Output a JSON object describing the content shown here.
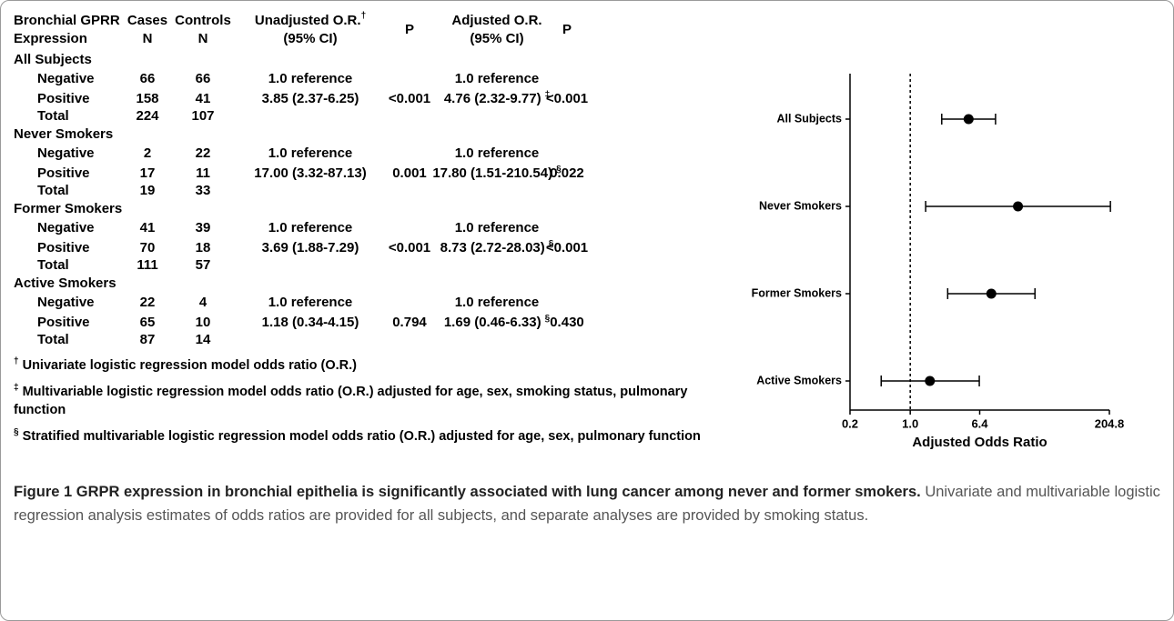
{
  "table": {
    "columns": [
      {
        "lines": [
          "Bronchial GPRR",
          "Expression"
        ]
      },
      {
        "lines": [
          "Cases",
          "N"
        ]
      },
      {
        "lines": [
          "Controls",
          "N"
        ]
      },
      {
        "lines": [
          "Unadjusted O.R.",
          "(95% CI)"
        ],
        "mark": "†"
      },
      {
        "lines": [
          "P"
        ]
      },
      {
        "lines": [
          "Adjusted O.R.",
          "(95% CI)"
        ]
      },
      {
        "lines": [
          "P"
        ]
      }
    ],
    "groups": [
      {
        "name": "All Subjects",
        "rows": [
          {
            "label": "Negative",
            "cases": 66,
            "controls": 66,
            "unadjusted": "1.0 reference",
            "adjusted": "1.0 reference"
          },
          {
            "label": "Positive",
            "cases": 158,
            "controls": 41,
            "unadjusted": "3.85 (2.37-6.25)",
            "p_unadjusted": "<0.001",
            "adjusted": "4.76 (2.32-9.77)",
            "mark": "‡",
            "p_adjusted": "<0.001"
          },
          {
            "label": "Total",
            "cases": 224,
            "controls": 107
          }
        ]
      },
      {
        "name": "Never Smokers",
        "rows": [
          {
            "label": "Negative",
            "cases": 2,
            "controls": 22,
            "unadjusted": "1.0 reference",
            "adjusted": "1.0 reference"
          },
          {
            "label": "Positive",
            "cases": 17,
            "controls": 11,
            "unadjusted": "17.00 (3.32-87.13)",
            "p_unadjusted": "0.001",
            "adjusted": "17.80 (1.51-210.54)",
            "mark": "§",
            "p_adjusted": "0.022"
          },
          {
            "label": "Total",
            "cases": 19,
            "controls": 33
          }
        ]
      },
      {
        "name": "Former Smokers",
        "rows": [
          {
            "label": "Negative",
            "cases": 41,
            "controls": 39,
            "unadjusted": "1.0 reference",
            "adjusted": "1.0 reference"
          },
          {
            "label": "Positive",
            "cases": 70,
            "controls": 18,
            "unadjusted": "3.69 (1.88-7.29)",
            "p_unadjusted": "<0.001",
            "adjusted": "8.73 (2.72-28.03)",
            "mark": "§",
            "p_adjusted": "<0.001"
          },
          {
            "label": "Total",
            "cases": 111,
            "controls": 57
          }
        ]
      },
      {
        "name": "Active Smokers",
        "rows": [
          {
            "label": "Negative",
            "cases": 22,
            "controls": 4,
            "unadjusted": "1.0 reference",
            "adjusted": "1.0 reference"
          },
          {
            "label": "Positive",
            "cases": 65,
            "controls": 10,
            "unadjusted": "1.18 (0.34-4.15)",
            "p_unadjusted": "0.794",
            "adjusted": "1.69 (0.46-6.33)",
            "mark": "§",
            "p_adjusted": "0.430"
          },
          {
            "label": "Total",
            "cases": 87,
            "controls": 14
          }
        ]
      }
    ]
  },
  "footnotes": [
    {
      "mark": "†",
      "text": "Univariate logistic regression model odds ratio (O.R.)"
    },
    {
      "mark": "‡",
      "text": "Multivariable logistic regression model odds ratio (O.R.) adjusted for age, sex, smoking status, pulmonary function"
    },
    {
      "mark": "§",
      "text": "Stratified multivariable logistic regression model odds ratio (O.R.) adjusted for age, sex, pulmonary function"
    }
  ],
  "caption": {
    "label": "Figure 1",
    "title": "GRPR expression in bronchial epithelia is significantly associated with lung cancer among never and former smokers.",
    "text": "Univariate and multivariable logistic regression analysis estimates of odds ratios are provided for all subjects, and separate analyses are provided by smoking status."
  },
  "chart_data": {
    "type": "forest",
    "categories": [
      "All Subjects",
      "Never Smokers",
      "Former Smokers",
      "Active Smokers"
    ],
    "values": [
      4.76,
      17.8,
      8.73,
      1.69
    ],
    "lower": [
      2.32,
      1.51,
      2.72,
      0.46
    ],
    "upper": [
      9.77,
      210.54,
      28.03,
      6.33
    ],
    "xlabel": "Adjusted Odds Ratio",
    "log_scale": true,
    "xlim": [
      0.2,
      204.8
    ],
    "xticks": [
      0.2,
      {
        "value": 1,
        "label": "1.0"
      },
      6.4,
      204.8
    ],
    "reference_line": 1,
    "color": "#000000"
  }
}
